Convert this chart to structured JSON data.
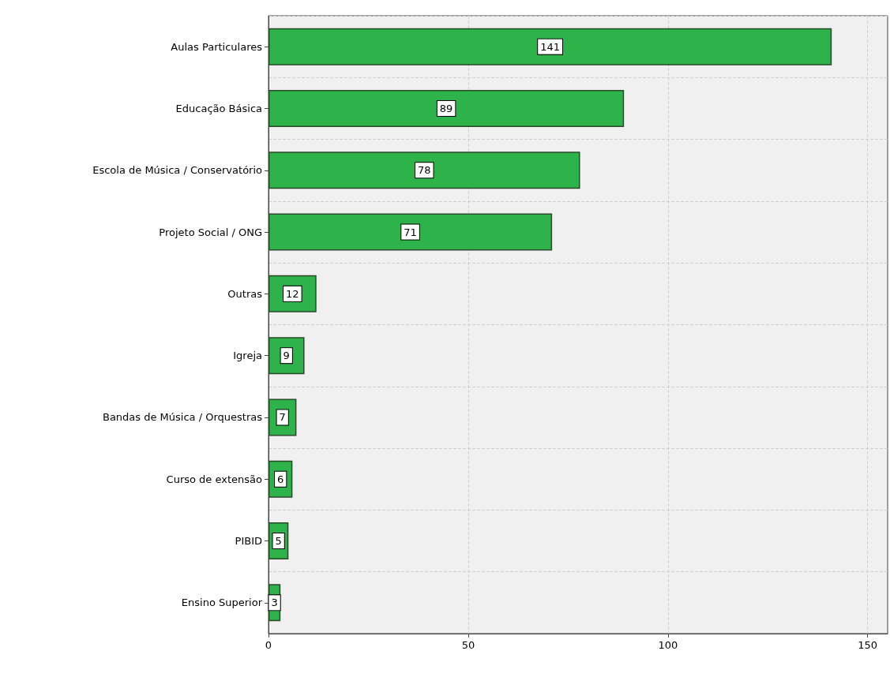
{
  "chart_data": {
    "type": "bar",
    "orientation": "horizontal",
    "categories": [
      "Aulas Particulares",
      "Educação Básica",
      "Escola de Música / Conservatório",
      "Projeto Social / ONG",
      "Outras",
      "Igreja",
      "Bandas de Música / Orquestras",
      "Curso de extensão",
      "PIBID",
      "Ensino Superior"
    ],
    "values": [
      141,
      89,
      78,
      71,
      12,
      9,
      7,
      6,
      5,
      3
    ],
    "color": "#2db34a",
    "xlim": [
      0,
      155
    ],
    "xticks": [
      0,
      50,
      100,
      150
    ],
    "grid": true,
    "data_labels": true
  }
}
